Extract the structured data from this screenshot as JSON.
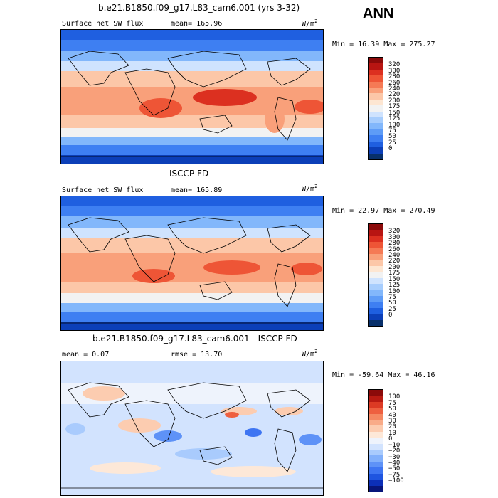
{
  "season": "ANN",
  "panels": [
    {
      "title": "b.e21.B1850.f09_g17.L83_cam6.001 (yrs 3-32)",
      "left_label": "Surface net SW flux",
      "stat_label": "mean= 165.96",
      "units": "W/m",
      "units_sup": "2",
      "minmax": "Min =  16.39 Max = 275.27",
      "colorbar": {
        "colors": [
          "#08306b",
          "#0c3fb8",
          "#1f5fe0",
          "#3e7ff2",
          "#5e9cf7",
          "#82b7fb",
          "#a7cdfd",
          "#cfe3fe",
          "#f2f2f2",
          "#fde6d2",
          "#fcc7a8",
          "#f9a07a",
          "#f57a55",
          "#ee5536",
          "#dc3020",
          "#b81512",
          "#8b0a0a"
        ],
        "labels": [
          "320",
          "300",
          "280",
          "260",
          "240",
          "220",
          "200",
          "175",
          "150",
          "125",
          "100",
          "75",
          "50",
          "25",
          "0"
        ]
      }
    },
    {
      "title": "ISCCP FD",
      "left_label": "Surface net SW flux",
      "stat_label": "mean= 165.89",
      "units": "W/m",
      "units_sup": "2",
      "minmax": "Min =  22.97 Max = 270.49",
      "colorbar": {
        "colors": [
          "#08306b",
          "#0c3fb8",
          "#1f5fe0",
          "#3e7ff2",
          "#5e9cf7",
          "#82b7fb",
          "#a7cdfd",
          "#cfe3fe",
          "#f2f2f2",
          "#fde6d2",
          "#fcc7a8",
          "#f9a07a",
          "#f57a55",
          "#ee5536",
          "#dc3020",
          "#b81512",
          "#8b0a0a"
        ],
        "labels": [
          "320",
          "300",
          "280",
          "260",
          "240",
          "220",
          "200",
          "175",
          "150",
          "125",
          "100",
          "75",
          "50",
          "25",
          "0"
        ]
      }
    },
    {
      "title": "b.e21.B1850.f09_g17.L83_cam6.001 - ISCCP FD",
      "left_label": "mean =   0.07",
      "stat_label": "rmse =  13.70",
      "units": "W/m",
      "units_sup": "2",
      "minmax": "Min = -59.64 Max =  46.16",
      "colorbar": {
        "colors": [
          "#08157a",
          "#0c2fb8",
          "#1f55e0",
          "#3e75f2",
          "#5e92f7",
          "#82b0fb",
          "#a9cbfd",
          "#d2e3fe",
          "#eef3fc",
          "#fde8d8",
          "#fcccb0",
          "#f9ab88",
          "#f58862",
          "#ee6040",
          "#dc3a24",
          "#b81a12",
          "#8b0a0a"
        ],
        "labels": [
          "100",
          "75",
          "50",
          "40",
          "30",
          "20",
          "10",
          "0",
          "−10",
          "−20",
          "−30",
          "−40",
          "−50",
          "−75",
          "−100"
        ]
      }
    }
  ]
}
